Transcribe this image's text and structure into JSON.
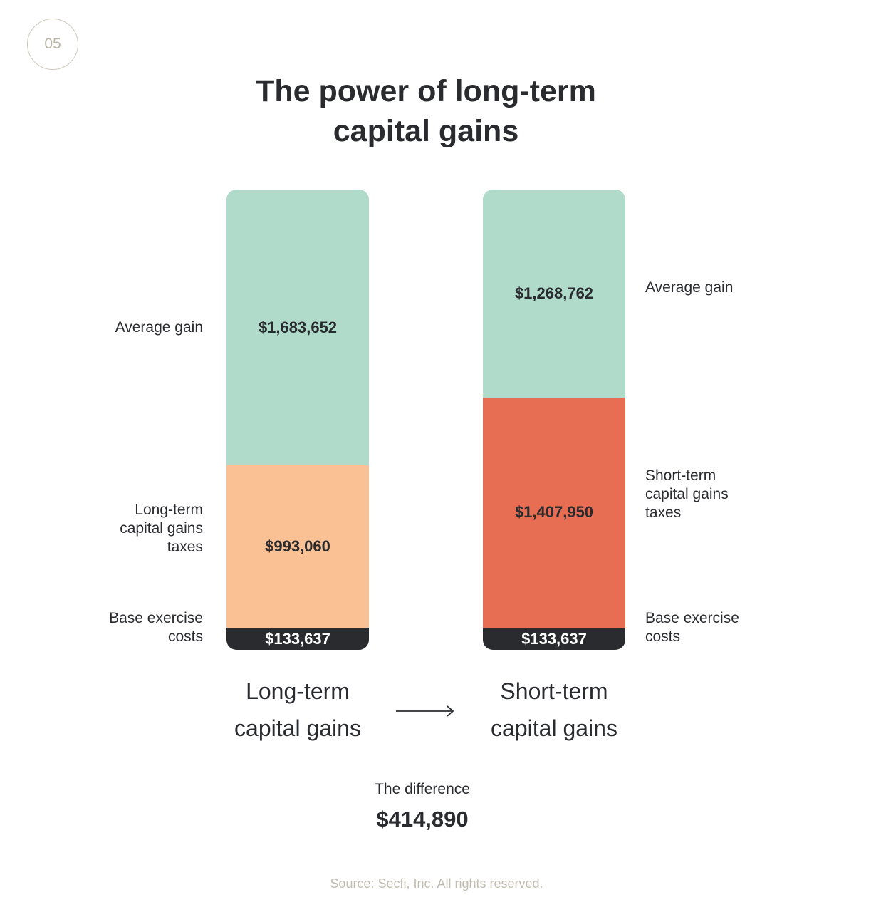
{
  "badge": "05",
  "title_line1": "The power of long-term",
  "title_line2": "capital gains",
  "chart_data": {
    "type": "bar",
    "stacked": true,
    "categories": [
      {
        "line1": "Long-term",
        "line2": "capital gains"
      },
      {
        "line1": "Short-term",
        "line2": "capital gains"
      }
    ],
    "series": [
      {
        "name": "Base exercise costs",
        "values": [
          133637,
          133637
        ],
        "value_labels": [
          "$133,637",
          "$133,637"
        ],
        "colors": [
          "#2a2b2f",
          "#2a2b2f"
        ]
      },
      {
        "name": "capital gains taxes",
        "values": [
          993060,
          1407950
        ],
        "value_labels": [
          "$993,060",
          "$1,407,950"
        ],
        "colors": [
          "#f9c194",
          "#e86e53"
        ]
      },
      {
        "name": "Average gain",
        "values": [
          1683652,
          1268762
        ],
        "value_labels": [
          "$1,683,652",
          "$1,268,762"
        ],
        "colors": [
          "#b0dbcb",
          "#b0dbcb"
        ]
      }
    ],
    "segment_labels": {
      "left": {
        "average_gain": [
          "Average gain"
        ],
        "taxes": [
          "Long-term",
          "capital gains",
          "taxes"
        ],
        "base": [
          "Base exercise",
          "costs"
        ]
      },
      "right": {
        "average_gain": [
          "Average gain"
        ],
        "taxes": [
          "Short-term",
          "capital gains",
          "taxes"
        ],
        "base": [
          "Base exercise",
          "costs"
        ]
      }
    }
  },
  "difference_label": "The difference",
  "difference_value": "$414,890",
  "source": "Source: Secfi, Inc. All rights reserved."
}
